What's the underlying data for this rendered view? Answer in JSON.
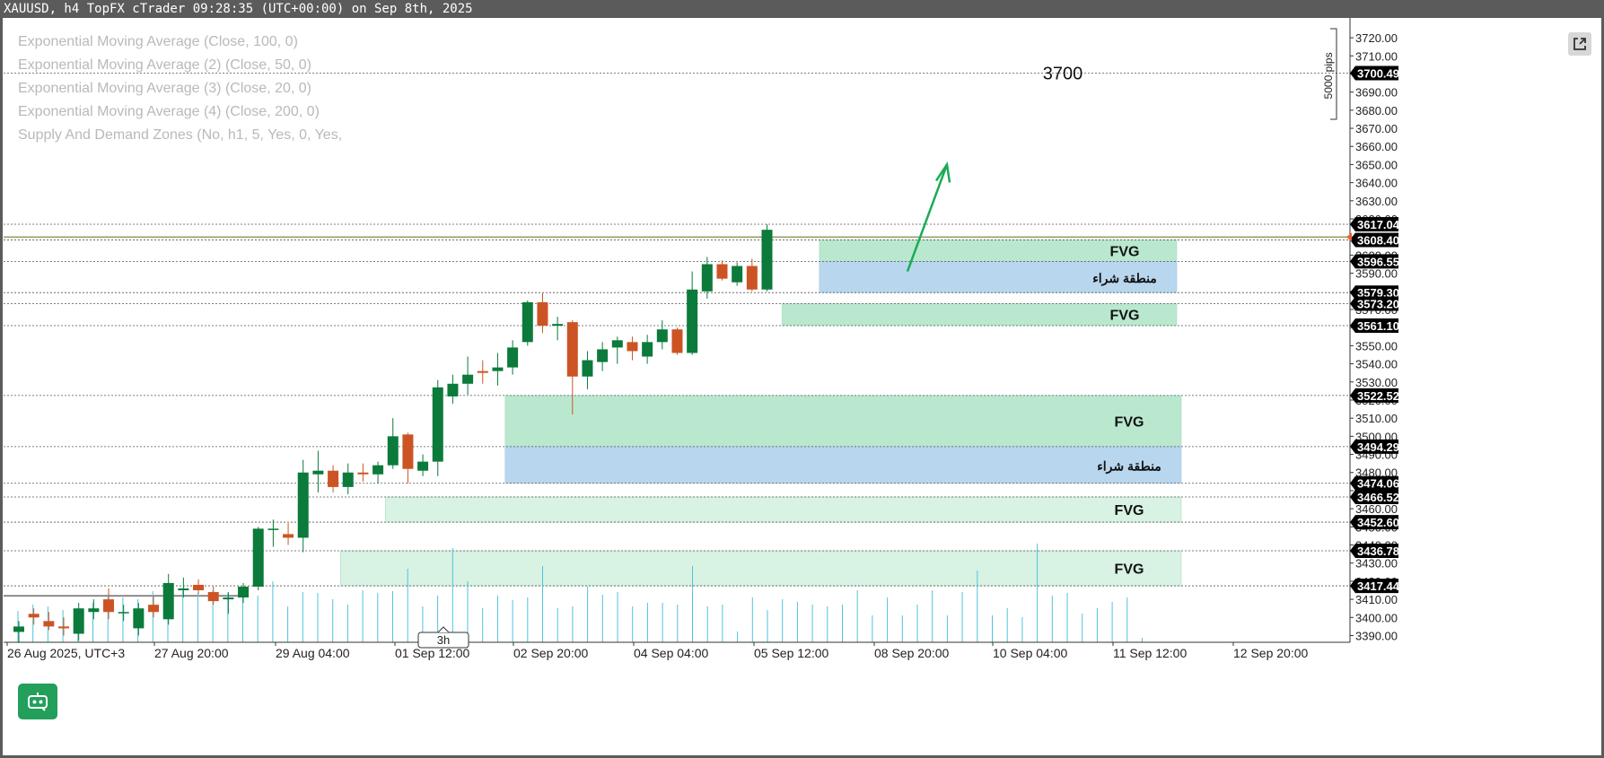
{
  "window": {
    "title": "XAUUSD, h4 TopFX cTrader 09:28:35 (UTC+00:00) on Sep 8th, 2025"
  },
  "indicators": [
    "Exponential Moving Average (Close, 100, 0)",
    "Exponential Moving Average (2) (Close, 50, 0)",
    "Exponential Moving Average (3) (Close, 20, 0)",
    "Exponential Moving Average (4) (Close, 200, 0)",
    "Supply And Demand Zones (No, h1, 5, Yes, 0, Yes,"
  ],
  "toolbar": {
    "popout_icon": "external-link-icon",
    "bot_icon": "robot-icon"
  },
  "colors": {
    "bull": "#0b7a3b",
    "bear": "#cc5424",
    "fvg": "#b9e8cf",
    "fvg_light": "#d8f2e3",
    "buy_zone": "#b8d6ee",
    "price_line": "#6b7f2a",
    "volume": "#4fc3dc",
    "arrow": "#1aab55",
    "axis_label_bg": "#000000"
  },
  "chart_data": {
    "type": "candlestick",
    "symbol": "XAUUSD",
    "timeframe": "h4",
    "ylim": [
      3385,
      3725
    ],
    "y_ticks": [
      3390,
      3400,
      3410,
      3420,
      3430,
      3440,
      3450,
      3460,
      3470,
      3480,
      3490,
      3500,
      3510,
      3520,
      3530,
      3540,
      3550,
      3560,
      3570,
      3580,
      3590,
      3600,
      3610,
      3620,
      3630,
      3640,
      3650,
      3660,
      3670,
      3680,
      3690,
      3700,
      3710,
      3720
    ],
    "y_tick_labels": [
      "3390.00",
      "3400.00",
      "3410.00",
      "3420.00",
      "3430.00",
      "3440.00",
      "3450.00",
      "3460.00",
      "3470.00",
      "3480.00",
      "3490.00",
      "3500.00",
      "3510.00",
      "3520.00",
      "3530.00",
      "3540.00",
      "3550.00",
      "3560.00",
      "3570.00",
      "3580.00",
      "3590.00",
      "3600.00",
      "3610.00",
      "3620.00",
      "3630.00",
      "3640.00",
      "3650.00",
      "3660.00",
      "3670.00",
      "3680.00",
      "3690.00",
      "3700.00",
      "3710.00",
      "3720.00"
    ],
    "x_labels": [
      "26 Aug 2025, UTC+3",
      "27 Aug 20:00",
      "29 Aug 04:00",
      "01 Sep 12:00",
      "02 Sep 20:00",
      "04 Sep 04:00",
      "05 Sep 12:00",
      "08 Sep 20:00",
      "10 Sep 04:00",
      "11 Sep 12:00",
      "12 Sep 20:00"
    ],
    "x_label_slots": [
      0,
      10,
      18,
      26,
      34,
      42,
      50,
      58,
      66,
      74,
      82
    ],
    "x_cursor_label": "3h",
    "x_cursor_slot": 29,
    "candles": [
      {
        "o": 3392,
        "h": 3398,
        "l": 3386,
        "c": 3395
      },
      {
        "o": 3402,
        "h": 3405,
        "l": 3396,
        "c": 3400
      },
      {
        "o": 3398,
        "h": 3403,
        "l": 3393,
        "c": 3395
      },
      {
        "o": 3395,
        "h": 3400,
        "l": 3390,
        "c": 3394
      },
      {
        "o": 3391,
        "h": 3408,
        "l": 3387,
        "c": 3405
      },
      {
        "o": 3403,
        "h": 3410,
        "l": 3399,
        "c": 3405
      },
      {
        "o": 3410,
        "h": 3416,
        "l": 3399,
        "c": 3403
      },
      {
        "o": 3403,
        "h": 3407,
        "l": 3398,
        "c": 3403
      },
      {
        "o": 3394,
        "h": 3408,
        "l": 3390,
        "c": 3405
      },
      {
        "o": 3407,
        "h": 3412,
        "l": 3400,
        "c": 3403
      },
      {
        "o": 3399,
        "h": 3424,
        "l": 3396,
        "c": 3419
      },
      {
        "o": 3415,
        "h": 3422,
        "l": 3411,
        "c": 3416
      },
      {
        "o": 3418,
        "h": 3421,
        "l": 3413,
        "c": 3415
      },
      {
        "o": 3414,
        "h": 3417,
        "l": 3407,
        "c": 3409
      },
      {
        "o": 3410,
        "h": 3414,
        "l": 3402,
        "c": 3411
      },
      {
        "o": 3411,
        "h": 3419,
        "l": 3408,
        "c": 3417
      },
      {
        "o": 3417,
        "h": 3450,
        "l": 3415,
        "c": 3449
      },
      {
        "o": 3449,
        "h": 3454,
        "l": 3439,
        "c": 3449
      },
      {
        "o": 3446,
        "h": 3452,
        "l": 3440,
        "c": 3444
      },
      {
        "o": 3444,
        "h": 3487,
        "l": 3436,
        "c": 3480
      },
      {
        "o": 3479,
        "h": 3492,
        "l": 3469,
        "c": 3481
      },
      {
        "o": 3481,
        "h": 3484,
        "l": 3469,
        "c": 3472
      },
      {
        "o": 3472,
        "h": 3485,
        "l": 3468,
        "c": 3480
      },
      {
        "o": 3480,
        "h": 3485,
        "l": 3475,
        "c": 3479
      },
      {
        "o": 3479,
        "h": 3486,
        "l": 3474,
        "c": 3484
      },
      {
        "o": 3484,
        "h": 3510,
        "l": 3482,
        "c": 3500
      },
      {
        "o": 3501,
        "h": 3502,
        "l": 3474,
        "c": 3482
      },
      {
        "o": 3481,
        "h": 3490,
        "l": 3478,
        "c": 3486
      },
      {
        "o": 3486,
        "h": 3531,
        "l": 3478,
        "c": 3527
      },
      {
        "o": 3522,
        "h": 3534,
        "l": 3518,
        "c": 3529
      },
      {
        "o": 3529,
        "h": 3544,
        "l": 3523,
        "c": 3534
      },
      {
        "o": 3536,
        "h": 3542,
        "l": 3529,
        "c": 3535
      },
      {
        "o": 3536,
        "h": 3546,
        "l": 3528,
        "c": 3538
      },
      {
        "o": 3538,
        "h": 3553,
        "l": 3534,
        "c": 3549
      },
      {
        "o": 3552,
        "h": 3575,
        "l": 3550,
        "c": 3574
      },
      {
        "o": 3574,
        "h": 3579,
        "l": 3557,
        "c": 3561
      },
      {
        "o": 3561,
        "h": 3566,
        "l": 3553,
        "c": 3562
      },
      {
        "o": 3563,
        "h": 3564,
        "l": 3512,
        "c": 3533
      },
      {
        "o": 3533,
        "h": 3547,
        "l": 3526,
        "c": 3542
      },
      {
        "o": 3541,
        "h": 3552,
        "l": 3536,
        "c": 3548
      },
      {
        "o": 3549,
        "h": 3555,
        "l": 3540,
        "c": 3553
      },
      {
        "o": 3552,
        "h": 3555,
        "l": 3542,
        "c": 3547
      },
      {
        "o": 3544,
        "h": 3556,
        "l": 3540,
        "c": 3552
      },
      {
        "o": 3552,
        "h": 3564,
        "l": 3548,
        "c": 3559
      },
      {
        "o": 3559,
        "h": 3560,
        "l": 3545,
        "c": 3546
      },
      {
        "o": 3546,
        "h": 3591,
        "l": 3545,
        "c": 3581
      },
      {
        "o": 3580,
        "h": 3599,
        "l": 3576,
        "c": 3595
      },
      {
        "o": 3595,
        "h": 3597,
        "l": 3586,
        "c": 3587
      },
      {
        "o": 3585,
        "h": 3596,
        "l": 3583,
        "c": 3594
      },
      {
        "o": 3594,
        "h": 3598,
        "l": 3580,
        "c": 3581
      },
      {
        "o": 3581,
        "h": 3617,
        "l": 3580,
        "c": 3614
      }
    ],
    "volumes": [
      35,
      42,
      40,
      36,
      38,
      44,
      52,
      50,
      48,
      57,
      62,
      60,
      55,
      58,
      55,
      60,
      52,
      68,
      40,
      56,
      55,
      48,
      42,
      58,
      55,
      57,
      82,
      40,
      52,
      105,
      68,
      38,
      52,
      47,
      50,
      85,
      38,
      40,
      62,
      53,
      56,
      40,
      44,
      44,
      42,
      85,
      40,
      42,
      12,
      50,
      36,
      48,
      45,
      42,
      40,
      42,
      58,
      30,
      50,
      30,
      42,
      58,
      30,
      56,
      80,
      30,
      38,
      28,
      110,
      52,
      55,
      32,
      38,
      45,
      50,
      5
    ],
    "price_lines": [
      3617.04,
      3608.4,
      3596.55,
      3579.3,
      3573.2,
      3561.1,
      3522.52,
      3494.29,
      3474.06,
      3466.52,
      3452.6,
      3436.78,
      3417.44,
      3700.49
    ],
    "price_labels": [
      "3617.04",
      "3608.40",
      "3596.55",
      "3579.30",
      "3573.20",
      "3561.10",
      "3522.52",
      "3494.29",
      "3474.06",
      "3466.52",
      "3452.60",
      "3436.78",
      "3417.44",
      "3700.49"
    ],
    "current_price": 3610,
    "zones": [
      {
        "label": "FVG",
        "type": "fvg",
        "top": 3608.4,
        "bottom": 3596.55,
        "start": 53.5
      },
      {
        "label": "منطقة شراء",
        "type": "buy",
        "top": 3596.55,
        "bottom": 3579.3,
        "start": 53.5
      },
      {
        "label": "FVG",
        "type": "fvg",
        "top": 3573.2,
        "bottom": 3561.1,
        "start": 51
      },
      {
        "label": "FVG",
        "type": "fvg",
        "top": 3522.52,
        "bottom": 3494.29,
        "start": 32.5
      },
      {
        "label": "منطقة شراء",
        "type": "buy",
        "top": 3494.29,
        "bottom": 3474.06,
        "start": 32.5
      },
      {
        "label": "FVG",
        "type": "fvg_light",
        "top": 3466.52,
        "bottom": 3452.6,
        "start": 24.5
      },
      {
        "label": "FVG",
        "type": "fvg_light",
        "top": 3436.78,
        "bottom": 3417.44,
        "start": 21.5
      }
    ],
    "annotations": [
      {
        "text": "3700",
        "slot": 70,
        "price": 3700
      }
    ],
    "measure_label": "5000 pips",
    "measure_range": [
      3725,
      3675
    ],
    "arrow": {
      "from_slot": 60.5,
      "from_price": 3591,
      "to_slot": 63.5,
      "to_price": 3650
    }
  }
}
